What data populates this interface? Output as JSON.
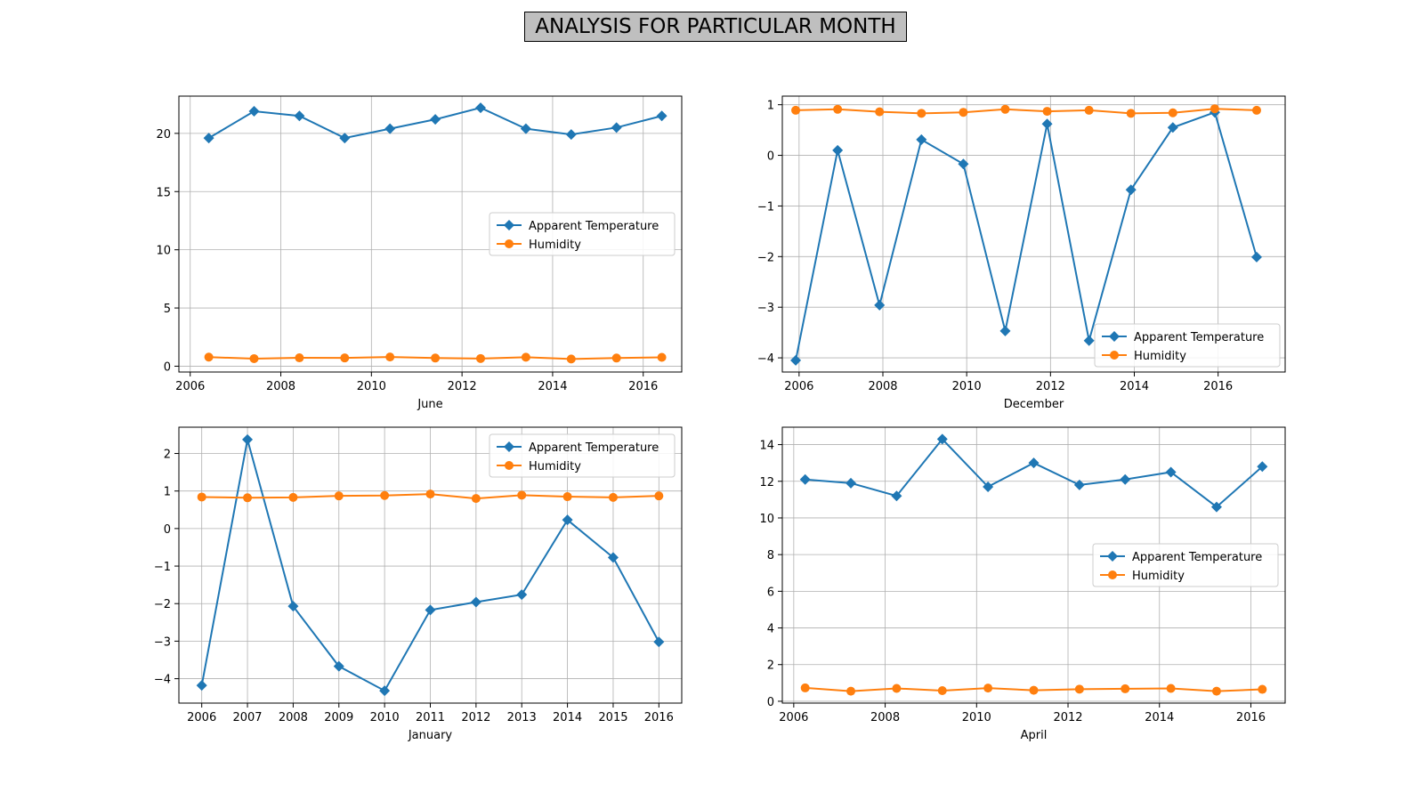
{
  "figure": {
    "title": "ANALYSIS FOR PARTICULAR MONTH"
  },
  "colors": {
    "temperature": "#1f77b4",
    "humidity": "#ff7f0e",
    "grid": "#b0b0b0"
  },
  "chart_data": [
    {
      "type": "line",
      "xlabel": "June",
      "xlim": [
        2005.75,
        2016.85
      ],
      "ylim": [
        -0.5,
        23.2
      ],
      "xticks": [
        2006,
        2008,
        2010,
        2012,
        2014,
        2016
      ],
      "yticks": [
        0,
        5,
        10,
        15,
        20
      ],
      "grid": true,
      "legend_position": "center-right",
      "series": [
        {
          "name": "Apparent Temperature",
          "marker": "diamond",
          "x": [
            2006.41,
            2007.41,
            2008.41,
            2009.41,
            2010.41,
            2011.41,
            2012.41,
            2013.41,
            2014.41,
            2015.41,
            2016.41
          ],
          "y": [
            19.6,
            21.9,
            21.5,
            19.6,
            20.4,
            21.2,
            22.2,
            20.4,
            19.9,
            20.5,
            21.5
          ]
        },
        {
          "name": "Humidity",
          "marker": "circle",
          "x": [
            2006.41,
            2007.41,
            2008.41,
            2009.41,
            2010.41,
            2011.41,
            2012.41,
            2013.41,
            2014.41,
            2015.41,
            2016.41
          ],
          "y": [
            0.78,
            0.65,
            0.72,
            0.71,
            0.79,
            0.7,
            0.66,
            0.77,
            0.62,
            0.7,
            0.76
          ]
        }
      ]
    },
    {
      "type": "line",
      "xlabel": "December",
      "xlim": [
        2005.6,
        2017.6
      ],
      "ylim": [
        -4.28,
        1.17
      ],
      "xticks": [
        2006,
        2008,
        2010,
        2012,
        2014,
        2016
      ],
      "yticks": [
        -4,
        -3,
        -2,
        -1,
        0,
        1
      ],
      "ytick_labels": [
        "−4",
        "−3",
        "−2",
        "−1",
        "0",
        "1"
      ],
      "grid": true,
      "legend_position": "lower-right",
      "series": [
        {
          "name": "Apparent Temperature",
          "marker": "diamond",
          "x": [
            2005.92,
            2006.92,
            2007.92,
            2008.92,
            2009.92,
            2010.92,
            2011.92,
            2012.92,
            2013.92,
            2014.92,
            2015.92,
            2016.92
          ],
          "y": [
            -4.05,
            0.1,
            -2.96,
            0.31,
            -0.17,
            -3.47,
            0.62,
            -3.66,
            -0.68,
            0.55,
            0.85,
            -2.01
          ]
        },
        {
          "name": "Humidity",
          "marker": "circle",
          "x": [
            2005.92,
            2006.92,
            2007.92,
            2008.92,
            2009.92,
            2010.92,
            2011.92,
            2012.92,
            2013.92,
            2014.92,
            2015.92,
            2016.92
          ],
          "y": [
            0.89,
            0.91,
            0.86,
            0.83,
            0.85,
            0.91,
            0.87,
            0.89,
            0.83,
            0.84,
            0.92,
            0.89
          ]
        }
      ]
    },
    {
      "type": "line",
      "xlabel": "January",
      "xlim": [
        2005.5,
        2016.5
      ],
      "ylim": [
        -4.65,
        2.7
      ],
      "xticks": [
        2006,
        2007,
        2008,
        2009,
        2010,
        2011,
        2012,
        2013,
        2014,
        2015,
        2016
      ],
      "yticks": [
        -4,
        -3,
        -2,
        -1,
        0,
        1,
        2
      ],
      "ytick_labels": [
        "−4",
        "−3",
        "−2",
        "−1",
        "0",
        "1",
        "2"
      ],
      "grid": true,
      "legend_position": "upper-right",
      "series": [
        {
          "name": "Apparent Temperature",
          "marker": "diamond",
          "x": [
            2006,
            2007,
            2008,
            2009,
            2010,
            2011,
            2012,
            2013,
            2014,
            2015,
            2016
          ],
          "y": [
            -4.18,
            2.37,
            -2.07,
            -3.67,
            -4.32,
            -2.17,
            -1.96,
            -1.76,
            0.23,
            -0.77,
            -3.02
          ]
        },
        {
          "name": "Humidity",
          "marker": "circle",
          "x": [
            2006,
            2007,
            2008,
            2009,
            2010,
            2011,
            2012,
            2013,
            2014,
            2015,
            2016
          ],
          "y": [
            0.84,
            0.82,
            0.83,
            0.87,
            0.88,
            0.92,
            0.8,
            0.89,
            0.85,
            0.83,
            0.87
          ]
        }
      ]
    },
    {
      "type": "line",
      "xlabel": "April",
      "xlim": [
        2005.75,
        2016.75
      ],
      "ylim": [
        -0.1,
        14.95
      ],
      "xticks": [
        2006,
        2008,
        2010,
        2012,
        2014,
        2016
      ],
      "yticks": [
        0,
        2,
        4,
        6,
        8,
        10,
        12,
        14
      ],
      "grid": true,
      "legend_position": "center-right",
      "series": [
        {
          "name": "Apparent Temperature",
          "marker": "diamond",
          "x": [
            2006.25,
            2007.25,
            2008.25,
            2009.25,
            2010.25,
            2011.25,
            2012.25,
            2013.25,
            2014.25,
            2015.25,
            2016.25
          ],
          "y": [
            12.1,
            11.9,
            11.2,
            14.3,
            11.7,
            13.0,
            11.8,
            12.1,
            12.5,
            10.6,
            12.8
          ]
        },
        {
          "name": "Humidity",
          "marker": "circle",
          "x": [
            2006.25,
            2007.25,
            2008.25,
            2009.25,
            2010.25,
            2011.25,
            2012.25,
            2013.25,
            2014.25,
            2015.25,
            2016.25
          ],
          "y": [
            0.73,
            0.55,
            0.7,
            0.58,
            0.72,
            0.6,
            0.66,
            0.68,
            0.7,
            0.55,
            0.65
          ]
        }
      ]
    }
  ]
}
